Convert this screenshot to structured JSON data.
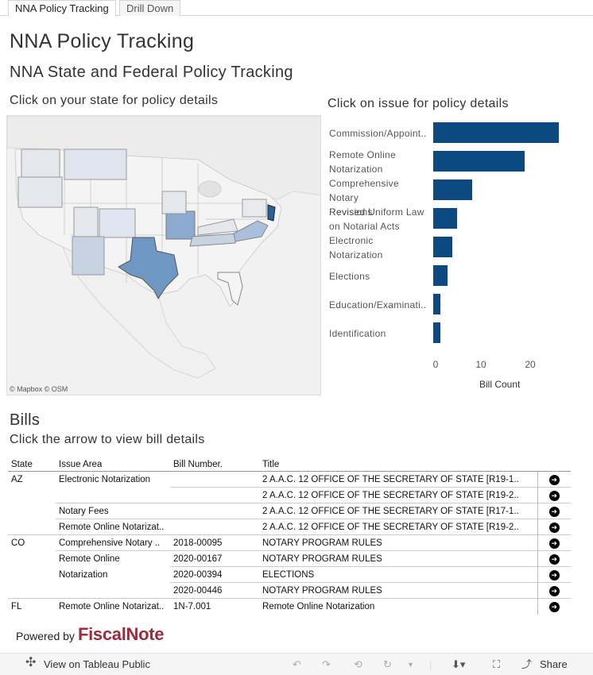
{
  "tabs": [
    "NNA Policy Tracking",
    "Drill Down"
  ],
  "title": "NNA Policy Tracking",
  "subtitle": "NNA State and Federal Policy Tracking",
  "map_heading": "Click on your state for policy details",
  "chart_heading": "Click on issue for policy details",
  "map_credit": "© Mapbox  © OSM",
  "map_colors": {
    "low": "#dfe5ee",
    "mid": "#b5c8dc",
    "high": "#6f97c3",
    "top": "#2b5f9a",
    "background": "#f1f1f1",
    "ocean": "#e6e6e6"
  },
  "chart_data": {
    "type": "bar",
    "orientation": "horizontal",
    "categories": [
      [
        "Commission/Appoint.."
      ],
      [
        "Remote Online",
        "Notarization"
      ],
      [
        "Comprehensive Notary",
        "Revisions"
      ],
      [
        "Revised Uniform Law",
        "on Notarial Acts"
      ],
      [
        "Electronic",
        "Notarization"
      ],
      [
        "Elections"
      ],
      [
        "Education/Examinati.."
      ],
      [
        "Identification"
      ]
    ],
    "values": [
      26,
      19,
      8,
      5,
      4,
      3,
      1.5,
      1.5
    ],
    "xlim": [
      0,
      27
    ],
    "xticks": [
      "0",
      "10",
      "20"
    ],
    "xlabel": "Bill Count",
    "color": "#0b4980"
  },
  "bills_title": "Bills",
  "bills_subtitle": "Click the arrow to view bill details",
  "bills_columns": [
    "State",
    "Issue Area",
    "Bill Number.",
    "Title"
  ],
  "bills_rows": [
    {
      "state": "AZ",
      "issue": "Electronic Notarization",
      "bill": "",
      "title": "2 A.A.C. 12 OFFICE OF THE SECRETARY OF STATE [R19-1.."
    },
    {
      "state": "",
      "issue": "",
      "bill": "",
      "title": "2 A.A.C. 12 OFFICE OF THE SECRETARY OF STATE [R19-2.."
    },
    {
      "state": "",
      "issue": "Notary Fees",
      "bill": "",
      "title": "2 A.A.C. 12 OFFICE OF THE SECRETARY OF STATE [R17-1.."
    },
    {
      "state": "",
      "issue": "Remote Online Notarizat..",
      "bill": "",
      "title": "2 A.A.C. 12 OFFICE OF THE SECRETARY OF STATE [R19-2.."
    },
    {
      "state": "CO",
      "issue": "Comprehensive Notary ..",
      "bill": "2018-00095",
      "title": "NOTARY PROGRAM RULES"
    },
    {
      "state": "",
      "issue": "Remote Online",
      "bill": "2020-00167",
      "title": "NOTARY PROGRAM RULES"
    },
    {
      "state": "",
      "issue": "Notarization",
      "bill": "2020-00394",
      "title": "ELECTIONS"
    },
    {
      "state": "",
      "issue": "",
      "bill": "2020-00446",
      "title": "NOTARY PROGRAM RULES"
    },
    {
      "state": "FL",
      "issue": "Remote Online Notarizat..",
      "bill": "1N-7.001",
      "title": "Remote Online Notarization"
    }
  ],
  "powered_by": "Powered by",
  "brand": "FiscalNote",
  "toolbar": {
    "view_label": "View on Tableau Public",
    "share_label": "Share"
  }
}
